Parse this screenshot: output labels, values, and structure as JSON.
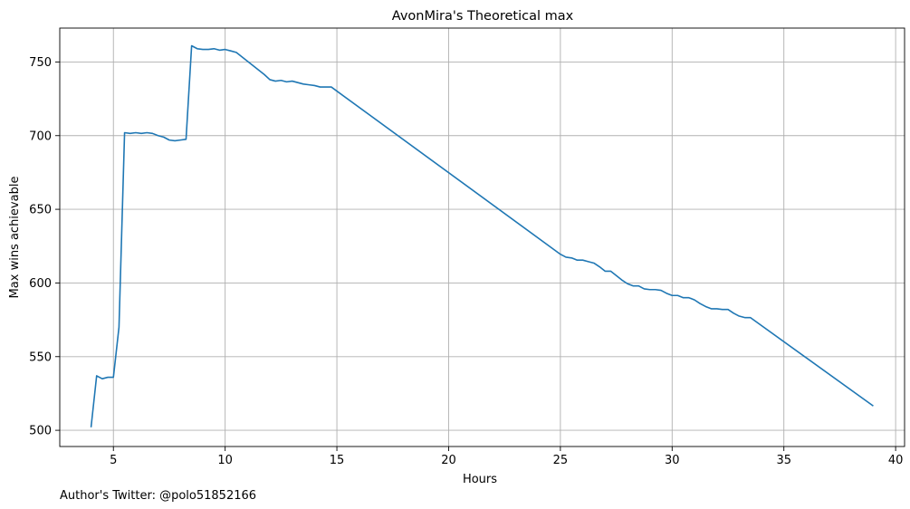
{
  "footnote": "Author's Twitter: @polo51852166",
  "chart_data": {
    "type": "line",
    "title": "AvonMira's Theoretical max",
    "xlabel": "Hours",
    "ylabel": "Max wins achievable",
    "xlim": [
      2.6,
      40.4
    ],
    "ylim": [
      489,
      773
    ],
    "xticks": [
      5,
      10,
      15,
      20,
      25,
      30,
      35,
      40
    ],
    "yticks": [
      500,
      550,
      600,
      650,
      700,
      750
    ],
    "xtick_labels": [
      "5",
      "10",
      "15",
      "20",
      "25",
      "30",
      "35",
      "40"
    ],
    "ytick_labels": [
      "500",
      "550",
      "600",
      "650",
      "700",
      "750"
    ],
    "grid": true,
    "line_color": "#1f77b4",
    "series": [
      {
        "x": [
          4.0,
          4.25,
          4.5,
          4.75,
          5.0,
          5.25,
          5.5,
          5.75,
          6.0,
          6.25,
          6.5,
          6.75,
          7.0,
          7.25,
          7.5,
          7.75,
          8.0,
          8.25,
          8.5,
          8.75,
          9.0,
          9.25,
          9.5,
          9.75,
          10.0,
          10.25,
          10.5,
          10.75,
          11.0,
          11.25,
          11.5,
          11.75,
          12.0,
          12.25,
          12.5,
          12.75,
          13.0,
          13.25,
          13.5,
          13.75,
          14.0,
          14.25,
          14.5,
          14.75,
          25.0,
          25.25,
          25.5,
          25.75,
          26.0,
          26.25,
          26.5,
          26.75,
          27.0,
          27.25,
          27.5,
          27.75,
          28.0,
          28.25,
          28.5,
          28.75,
          29.0,
          29.25,
          29.5,
          29.75,
          30.0,
          30.25,
          30.5,
          30.75,
          31.0,
          31.25,
          31.5,
          31.75,
          32.0,
          32.25,
          32.5,
          32.75,
          33.0,
          33.25,
          33.5,
          39.0
        ],
        "y": [
          502,
          537,
          535,
          536,
          536,
          570,
          702,
          701.5,
          702,
          701.5,
          702,
          701.5,
          700,
          699,
          697,
          696.5,
          697,
          697.5,
          761,
          759,
          758.5,
          758.5,
          759,
          758,
          758.5,
          757.5,
          756.5,
          753.5,
          750.5,
          747.5,
          744.5,
          741.5,
          738,
          737,
          737.5,
          736.5,
          737,
          736,
          735,
          734.5,
          734,
          733,
          733,
          733,
          619.5,
          617.5,
          617,
          615.5,
          615.5,
          614.5,
          613.5,
          611,
          608,
          608,
          605,
          602,
          599.5,
          598,
          598,
          596,
          595.5,
          595.5,
          595,
          593,
          591.5,
          591.5,
          590,
          590,
          588.5,
          586,
          584,
          582.5,
          582.5,
          582,
          582,
          579.5,
          577.5,
          576.5,
          576.5,
          516.5
        ]
      }
    ]
  }
}
